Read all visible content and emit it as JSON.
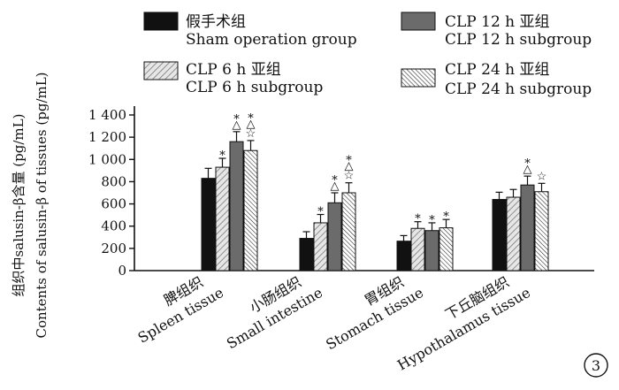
{
  "chart_data": {
    "type": "bar",
    "ylabel_cn": "组织中salusin-β含量 (pg/mL)",
    "ylabel_en": "Contents of salusin-β of tissues (pg/mL)",
    "ylim": [
      0,
      1400
    ],
    "yticks": [
      0,
      200,
      400,
      600,
      800,
      1000,
      1200,
      1400
    ],
    "ytick_labels": [
      "0",
      "200",
      "400",
      "600",
      "800",
      "1 000",
      "1 200",
      "1 400"
    ],
    "categories": [
      {
        "cn": "脾组织",
        "en": "Spleen tissue"
      },
      {
        "cn": "小肠组织",
        "en": "Small intestine"
      },
      {
        "cn": "胃组织",
        "en": "Stomach tissue"
      },
      {
        "cn": "下丘脑组织",
        "en": "Hypothalamus tissue"
      }
    ],
    "series": [
      {
        "cn": "假手术组",
        "en": "Sham operation group",
        "pattern": "black",
        "values": [
          830,
          290,
          265,
          640
        ],
        "errors": [
          90,
          60,
          50,
          65
        ]
      },
      {
        "cn": "CLP 6 h 亚组",
        "en": "CLP 6 h subgroup",
        "pattern": "light-hatch",
        "values": [
          930,
          430,
          380,
          660
        ],
        "errors": [
          80,
          75,
          60,
          70
        ]
      },
      {
        "cn": "CLP 12 h 亚组",
        "en": "CLP 12 h subgroup",
        "pattern": "gray",
        "values": [
          1160,
          610,
          360,
          770
        ],
        "errors": [
          90,
          90,
          70,
          80
        ]
      },
      {
        "cn": "CLP 24 h 亚组",
        "en": "CLP 24 h subgroup",
        "pattern": "dense-hatch",
        "values": [
          1080,
          700,
          385,
          710
        ],
        "errors": [
          90,
          90,
          75,
          75
        ]
      }
    ],
    "annotations": [
      [
        "",
        "",
        "",
        ""
      ],
      [
        "*",
        "*",
        "*",
        ""
      ],
      [
        "*△",
        "*△",
        "*",
        "*△"
      ],
      [
        "*△☆",
        "*△☆",
        "*",
        "☆"
      ]
    ],
    "panel_label": "3",
    "legend_position": "top"
  }
}
